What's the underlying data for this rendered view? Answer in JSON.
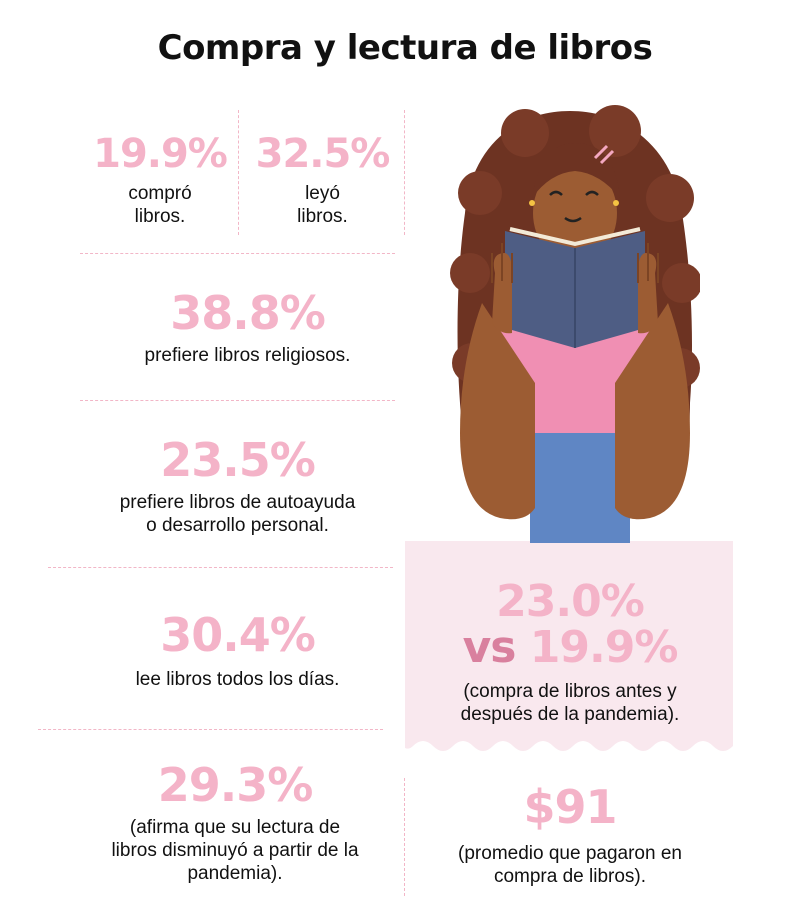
{
  "title": "Compra y lectura de libros",
  "stats": {
    "bought": {
      "value": "19.9%",
      "line1": "compró",
      "line2": "libros."
    },
    "read": {
      "value": "32.5%",
      "line1": "leyó",
      "line2": "libros."
    },
    "religious": {
      "value": "38.8%",
      "text": "prefiere libros religiosos."
    },
    "selfhelp": {
      "value": "23.5%",
      "line1": "prefiere libros de autoayuda",
      "line2": "o desarrollo personal."
    },
    "daily": {
      "value": "30.4%",
      "text": "lee libros todos los días."
    },
    "decreased": {
      "value": "29.3%",
      "line1": "(afirma que su lectura de",
      "line2": "libros disminuyó a partir de la",
      "line3": "pandemia)."
    },
    "pandemic": {
      "before": "23.0%",
      "vs": "vs",
      "after": "19.9%",
      "line1": "(compra de libros antes y",
      "line2": "después de la pandemia)."
    },
    "average": {
      "value": "$91",
      "line1": "(promedio que pagaron en",
      "line2": "compra de libros)."
    }
  },
  "colors": {
    "accent": "#f4b3c8",
    "accent_dark": "#d9809e",
    "panel": "#f9e8ee",
    "dash": "#f2b6c7"
  }
}
